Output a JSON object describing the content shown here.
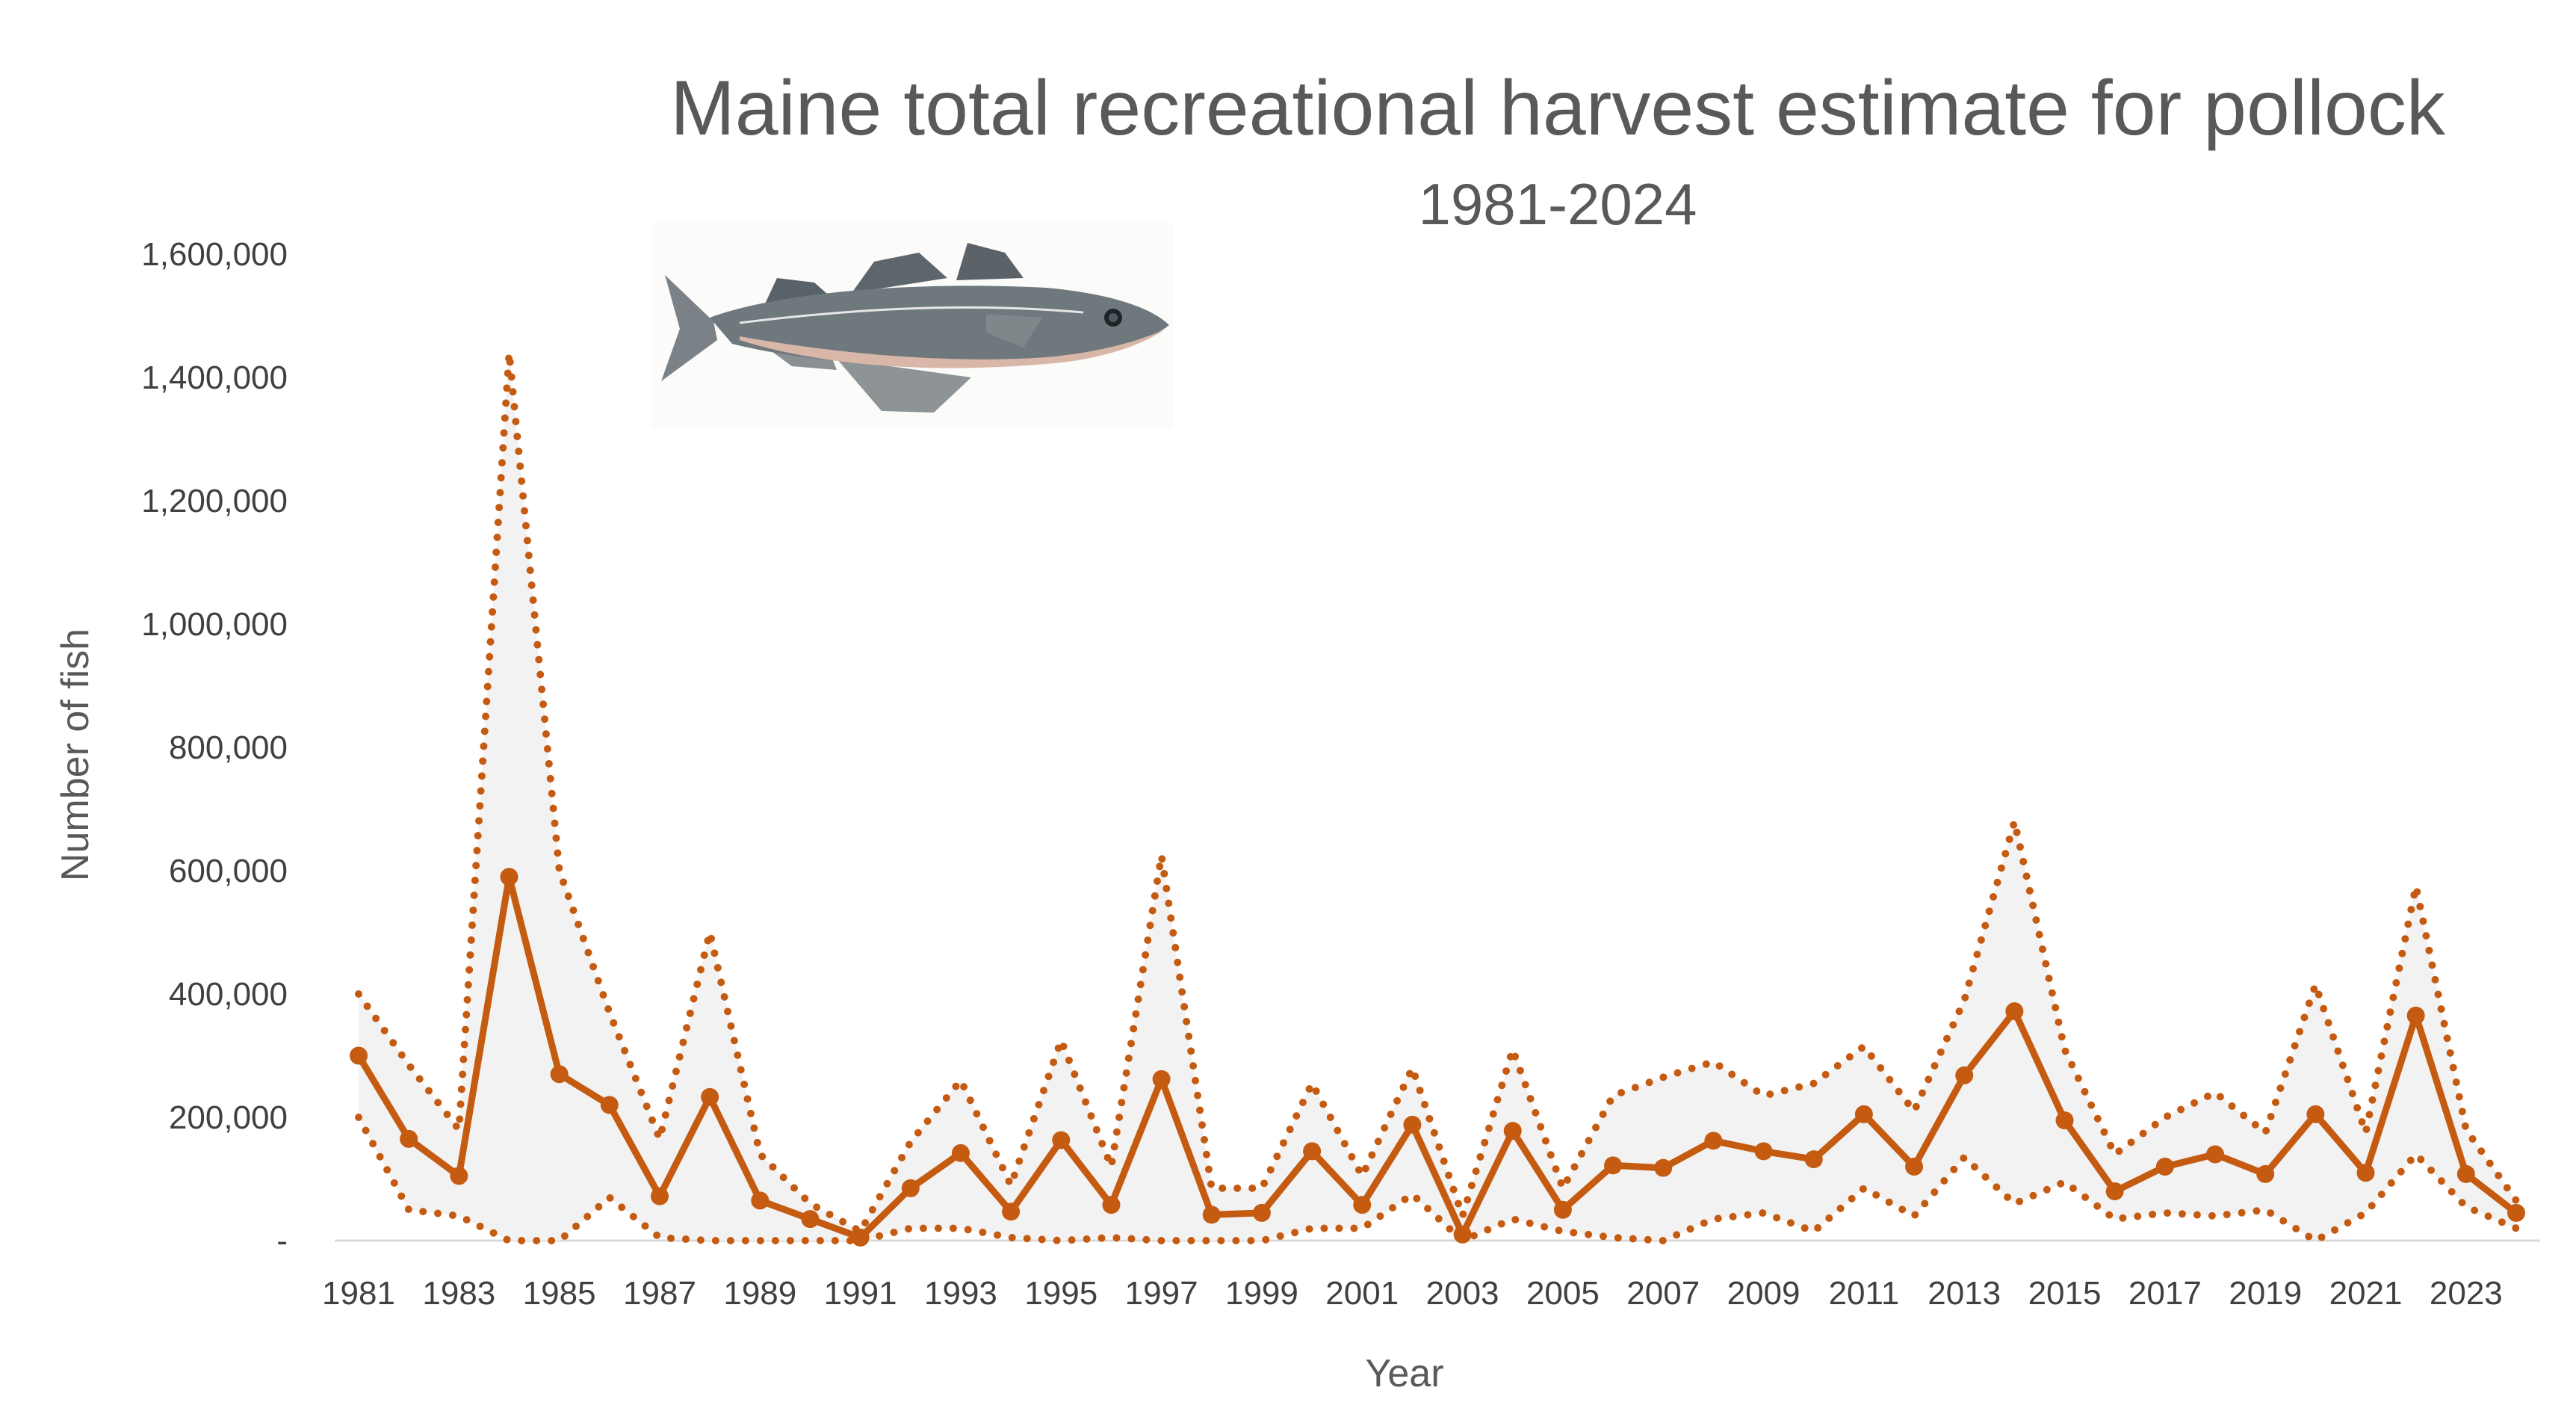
{
  "chart_data": {
    "type": "line",
    "title": "Maine total recreational harvest estimate for pollock",
    "subtitle": "1981-2024",
    "xlabel": "Year",
    "ylabel": "Number of fish",
    "ylim": [
      0,
      1600000
    ],
    "ytick_values": [
      0,
      200000,
      400000,
      600000,
      800000,
      1000000,
      1200000,
      1400000,
      1600000
    ],
    "ytick_labels": [
      "-",
      "200,000",
      "400,000",
      "600,000",
      "800,000",
      "1,000,000",
      "1,200,000",
      "1,400,000",
      "1,600,000"
    ],
    "xtick_labels": [
      "1981",
      "1983",
      "1985",
      "1987",
      "1989",
      "1991",
      "1993",
      "1995",
      "1997",
      "1999",
      "2001",
      "2003",
      "2005",
      "2007",
      "2009",
      "2011",
      "2013",
      "2015",
      "2017",
      "2019",
      "2021",
      "2023"
    ],
    "x": [
      1981,
      1982,
      1983,
      1984,
      1985,
      1986,
      1987,
      1988,
      1989,
      1990,
      1991,
      1992,
      1993,
      1994,
      1995,
      1996,
      1997,
      1998,
      1999,
      2000,
      2001,
      2002,
      2003,
      2004,
      2005,
      2006,
      2007,
      2008,
      2009,
      2010,
      2011,
      2012,
      2013,
      2014,
      2015,
      2016,
      2017,
      2018,
      2019,
      2020,
      2021,
      2022,
      2023,
      2024
    ],
    "series": [
      {
        "role": "estimate",
        "values": [
          300000,
          165000,
          105000,
          590000,
          270000,
          220000,
          72000,
          233000,
          65000,
          35000,
          5000,
          85000,
          142000,
          47000,
          163000,
          58000,
          262000,
          42000,
          45000,
          145000,
          58000,
          188000,
          10000,
          178000,
          50000,
          122000,
          118000,
          162000,
          145000,
          132000,
          205000,
          120000,
          268000,
          372000,
          195000,
          80000,
          120000,
          140000,
          108000,
          205000,
          110000,
          365000,
          108000,
          45000
        ]
      },
      {
        "role": "upper_bound",
        "values": [
          400000,
          285000,
          180000,
          1440000,
          600000,
          370000,
          165000,
          500000,
          140000,
          60000,
          15000,
          160000,
          260000,
          90000,
          325000,
          120000,
          625000,
          85000,
          85000,
          255000,
          105000,
          280000,
          40000,
          310000,
          85000,
          235000,
          265000,
          290000,
          235000,
          255000,
          315000,
          210000,
          390000,
          680000,
          310000,
          140000,
          200000,
          240000,
          175000,
          415000,
          175000,
          575000,
          180000,
          65000
        ]
      },
      {
        "role": "lower_bound",
        "values": [
          200000,
          50000,
          40000,
          0,
          0,
          70000,
          5000,
          0,
          0,
          0,
          0,
          20000,
          20000,
          5000,
          0,
          5000,
          0,
          0,
          0,
          20000,
          20000,
          75000,
          0,
          35000,
          15000,
          5000,
          0,
          35000,
          45000,
          15000,
          85000,
          40000,
          135000,
          60000,
          95000,
          35000,
          45000,
          40000,
          50000,
          0,
          45000,
          140000,
          55000,
          20000
        ]
      }
    ],
    "colors": {
      "line": "#c55a11",
      "band_fill": "#f2f2f2",
      "axis": "#d9d9d9",
      "title": "#595959",
      "tick": "#404040"
    },
    "grid": false,
    "legend": "none",
    "image": {
      "subject": "pollock",
      "icon": "pollock-fish-illustration"
    }
  }
}
